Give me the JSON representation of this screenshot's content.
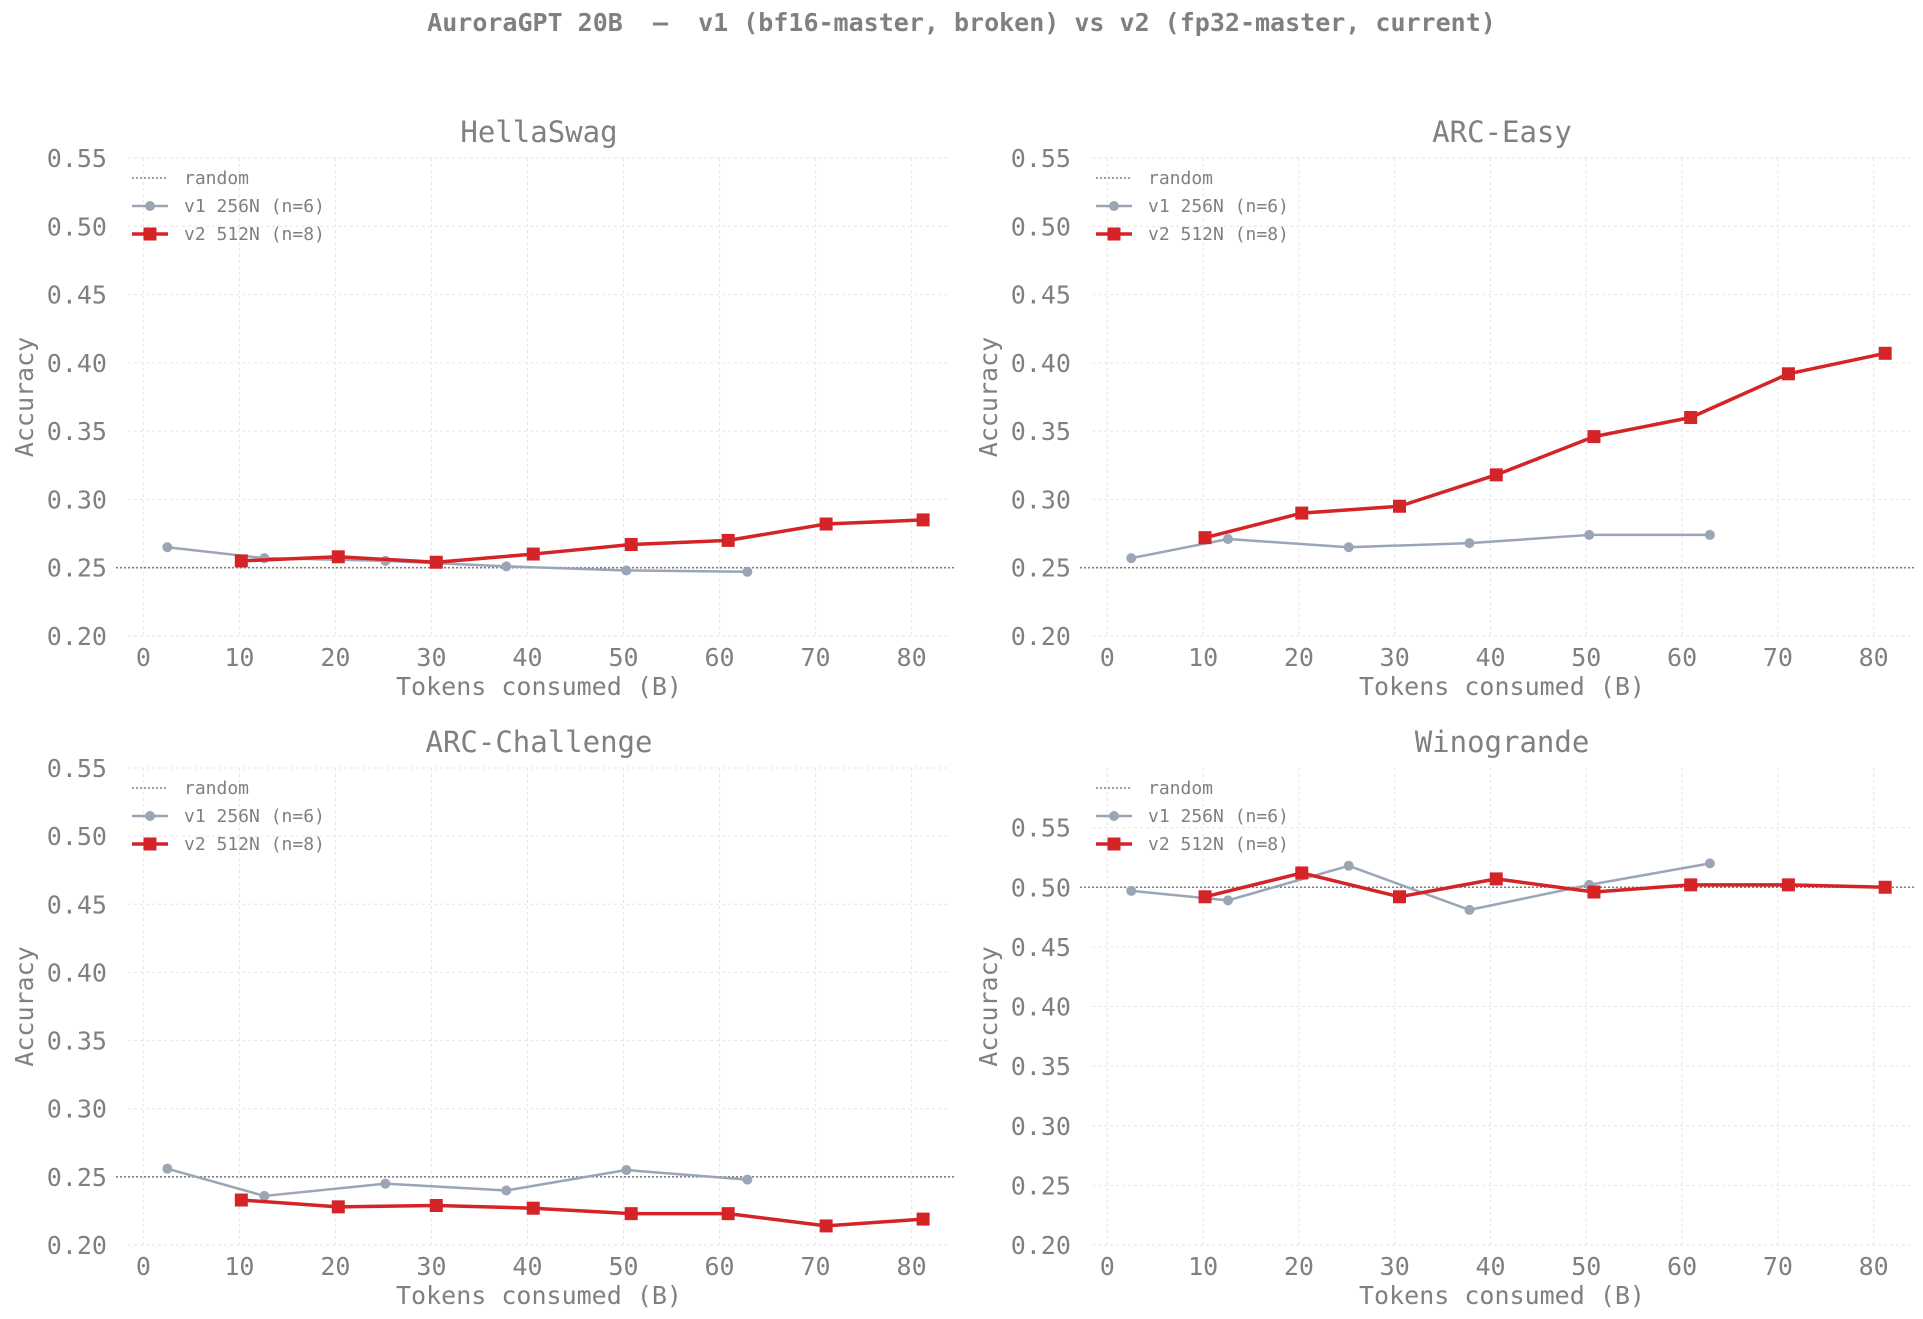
{
  "title": "AuroraGPT 20B  —  v1 (bf16-master, broken) vs v2 (fp32-master, current)",
  "colors": {
    "v1": "#9aa5b5",
    "v2": "#d42427",
    "random": "#808080",
    "grid": "#e6e6e6",
    "text": "#808080"
  },
  "legend_labels": [
    "random",
    "v1 256N (n=6)",
    "v2 512N (n=8)"
  ],
  "chart_data": [
    {
      "type": "line",
      "title": "HellaSwag",
      "xlabel": "Tokens consumed (B)",
      "ylabel": "Accuracy",
      "xlim": [
        -1.6,
        84
      ],
      "ylim": [
        0.2,
        0.55
      ],
      "xticks": [
        "0",
        "10",
        "20",
        "30",
        "40",
        "50",
        "60",
        "70",
        "80"
      ],
      "yticks": [
        "0.20",
        "0.25",
        "0.30",
        "0.35",
        "0.40",
        "0.45",
        "0.50",
        "0.55"
      ],
      "grid": true,
      "legend": "top-left",
      "random_baseline": 0.25,
      "series": [
        {
          "name": "v1 256N (n=6)",
          "x": [
            2.5,
            12.6,
            25.2,
            37.8,
            50.3,
            62.9
          ],
          "y": [
            0.265,
            0.257,
            0.255,
            0.251,
            0.248,
            0.247
          ]
        },
        {
          "name": "v2 512N (n=8)",
          "x": [
            10.2,
            20.3,
            30.5,
            40.6,
            50.8,
            60.9,
            71.1,
            81.2
          ],
          "y": [
            0.255,
            0.258,
            0.254,
            0.26,
            0.267,
            0.27,
            0.282,
            0.285
          ]
        }
      ]
    },
    {
      "type": "line",
      "title": "ARC-Easy",
      "xlabel": "Tokens consumed (B)",
      "ylabel": "Accuracy",
      "xlim": [
        -1.6,
        84
      ],
      "ylim": [
        0.2,
        0.55
      ],
      "xticks": [
        "0",
        "10",
        "20",
        "30",
        "40",
        "50",
        "60",
        "70",
        "80"
      ],
      "yticks": [
        "0.20",
        "0.25",
        "0.30",
        "0.35",
        "0.40",
        "0.45",
        "0.50",
        "0.55"
      ],
      "grid": true,
      "legend": "top-left",
      "random_baseline": 0.25,
      "series": [
        {
          "name": "v1 256N (n=6)",
          "x": [
            2.5,
            12.6,
            25.2,
            37.8,
            50.3,
            62.9
          ],
          "y": [
            0.257,
            0.271,
            0.265,
            0.268,
            0.274,
            0.274
          ]
        },
        {
          "name": "v2 512N (n=8)",
          "x": [
            10.2,
            20.3,
            30.5,
            40.6,
            50.8,
            60.9,
            71.1,
            81.2
          ],
          "y": [
            0.272,
            0.29,
            0.295,
            0.318,
            0.346,
            0.36,
            0.392,
            0.407
          ]
        }
      ]
    },
    {
      "type": "line",
      "title": "ARC-Challenge",
      "xlabel": "Tokens consumed (B)",
      "ylabel": "Accuracy",
      "xlim": [
        -1.6,
        84
      ],
      "ylim": [
        0.2,
        0.55
      ],
      "xticks": [
        "0",
        "10",
        "20",
        "30",
        "40",
        "50",
        "60",
        "70",
        "80"
      ],
      "yticks": [
        "0.20",
        "0.25",
        "0.30",
        "0.35",
        "0.40",
        "0.45",
        "0.50",
        "0.55"
      ],
      "grid": true,
      "legend": "top-left",
      "random_baseline": 0.25,
      "series": [
        {
          "name": "v1 256N (n=6)",
          "x": [
            2.5,
            12.6,
            25.2,
            37.8,
            50.3,
            62.9
          ],
          "y": [
            0.256,
            0.236,
            0.245,
            0.24,
            0.255,
            0.248
          ]
        },
        {
          "name": "v2 512N (n=8)",
          "x": [
            10.2,
            20.3,
            30.5,
            40.6,
            50.8,
            60.9,
            71.1,
            81.2
          ],
          "y": [
            0.233,
            0.228,
            0.229,
            0.227,
            0.223,
            0.223,
            0.214,
            0.219
          ]
        }
      ]
    },
    {
      "type": "line",
      "title": "Winogrande",
      "xlabel": "Tokens consumed (B)",
      "ylabel": "Accuracy",
      "xlim": [
        -1.6,
        84
      ],
      "ylim": [
        0.2,
        0.6
      ],
      "xticks": [
        "0",
        "10",
        "20",
        "30",
        "40",
        "50",
        "60",
        "70",
        "80"
      ],
      "yticks": [
        "0.20",
        "0.25",
        "0.30",
        "0.35",
        "0.40",
        "0.45",
        "0.50",
        "0.55"
      ],
      "grid": true,
      "legend": "top-left",
      "random_baseline": 0.5,
      "series": [
        {
          "name": "v1 256N (n=6)",
          "x": [
            2.5,
            12.6,
            25.2,
            37.8,
            50.3,
            62.9
          ],
          "y": [
            0.497,
            0.489,
            0.518,
            0.481,
            0.502,
            0.52
          ]
        },
        {
          "name": "v2 512N (n=8)",
          "x": [
            10.2,
            20.3,
            30.5,
            40.6,
            50.8,
            60.9,
            71.1,
            81.2
          ],
          "y": [
            0.492,
            0.512,
            0.492,
            0.507,
            0.496,
            0.502,
            0.502,
            0.5
          ]
        }
      ]
    }
  ]
}
